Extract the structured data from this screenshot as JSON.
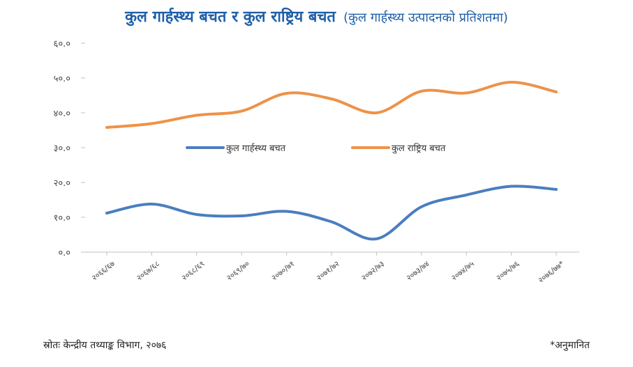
{
  "title": "कुल गार्हस्थ्य बचत र कुल राष्ट्रिय बचत",
  "subtitle": "(कुल गार्हस्थ्य उत्पादनको प्रतिशतमा)",
  "source": "स्रोतः केन्द्रीय तथ्याङ्क विभाग, २०७६",
  "note": "*अनुमानित",
  "colors": {
    "household": "#4a7ebf",
    "national": "#ee9248",
    "title": "#1f5fa8"
  },
  "chart_data": {
    "type": "line",
    "categories": [
      "२०६६/६७",
      "२०६७/६८",
      "२०६८/६९",
      "२०६९/७०",
      "२०७०/७१",
      "२०७१/७२",
      "२०७२/७३",
      "२०७३/७४",
      "२०७४/७५",
      "२०७५/७६",
      "२०७६/७७*"
    ],
    "y_ticks": [
      "०.०",
      "१०.०",
      "२०.०",
      "३०.०",
      "४०.०",
      "५०.०",
      "६०.०"
    ],
    "ylim": [
      0,
      60
    ],
    "legend_position": "center",
    "series": [
      {
        "name": "कुल गार्हस्थ्य बचत",
        "values": [
          11.2,
          13.8,
          10.8,
          10.4,
          11.7,
          8.7,
          3.8,
          13.0,
          16.4,
          18.9,
          18.0
        ]
      },
      {
        "name": "कुल राष्ट्रिय बचत",
        "values": [
          35.8,
          36.9,
          39.3,
          40.5,
          45.6,
          44.0,
          40.0,
          46.2,
          45.7,
          48.8,
          46.0
        ]
      }
    ]
  }
}
